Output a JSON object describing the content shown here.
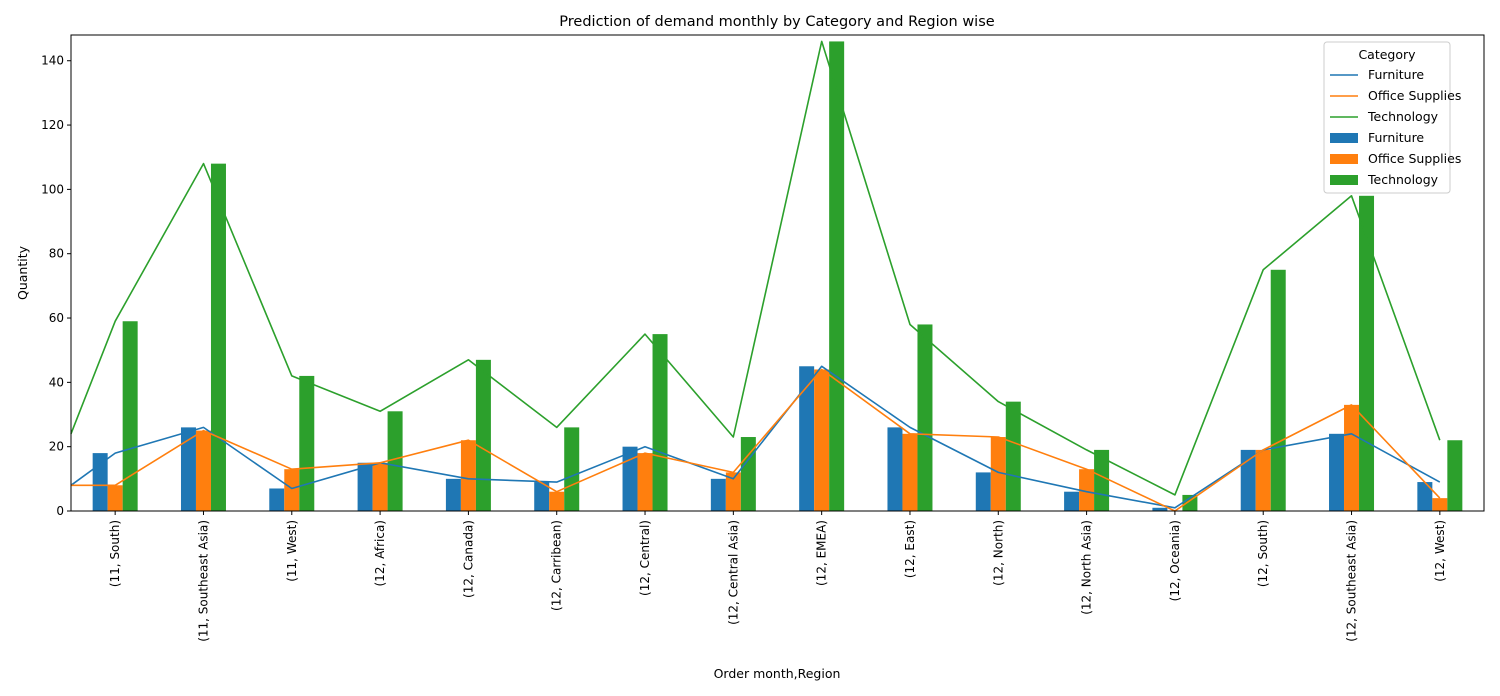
{
  "chart_data": {
    "type": "bar",
    "title": "Prediction of demand monthly  by Category and Region wise",
    "xlabel": "Order month,Region",
    "ylabel": "Quantity",
    "ylim": [
      0,
      148
    ],
    "yticks": [
      0,
      20,
      40,
      60,
      80,
      100,
      120,
      140
    ],
    "categories": [
      "(11, South)",
      "(11, Southeast Asia)",
      "(11, West)",
      "(12, Africa)",
      "(12, Canada)",
      "(12, Carribean)",
      "(12, Central)",
      "(12, Central Asia)",
      "(12, EMEA)",
      "(12, East)",
      "(12, North)",
      "(12, North Asia)",
      "(12, Oceania)",
      "(12, South)",
      "(12, Southeast Asia)",
      "(12, West)"
    ],
    "series": [
      {
        "name": "Furniture",
        "color": "#1f77b4",
        "values": [
          18,
          26,
          7,
          15,
          10,
          9,
          20,
          10,
          45,
          26,
          12,
          6,
          1,
          19,
          24,
          9
        ]
      },
      {
        "name": "Office Supplies",
        "color": "#ff7f0e",
        "values": [
          8,
          25,
          13,
          15,
          22,
          6,
          18,
          12,
          44,
          24,
          23,
          13,
          0,
          19,
          33,
          4
        ]
      },
      {
        "name": "Technology",
        "color": "#2ca02c",
        "values": [
          59,
          108,
          42,
          31,
          47,
          26,
          55,
          23,
          146,
          58,
          34,
          19,
          5,
          75,
          98,
          22
        ]
      }
    ],
    "line_overlay": {
      "x_start_value": {
        "Furniture": 8,
        "Office Supplies": 8,
        "Technology": 24
      }
    },
    "legend": {
      "title": "Category",
      "placement": "top-right",
      "line_entries": [
        "Furniture",
        "Office Supplies",
        "Technology"
      ],
      "bar_entries": [
        "Furniture",
        "Office Supplies",
        "Technology"
      ]
    },
    "grid": false
  }
}
